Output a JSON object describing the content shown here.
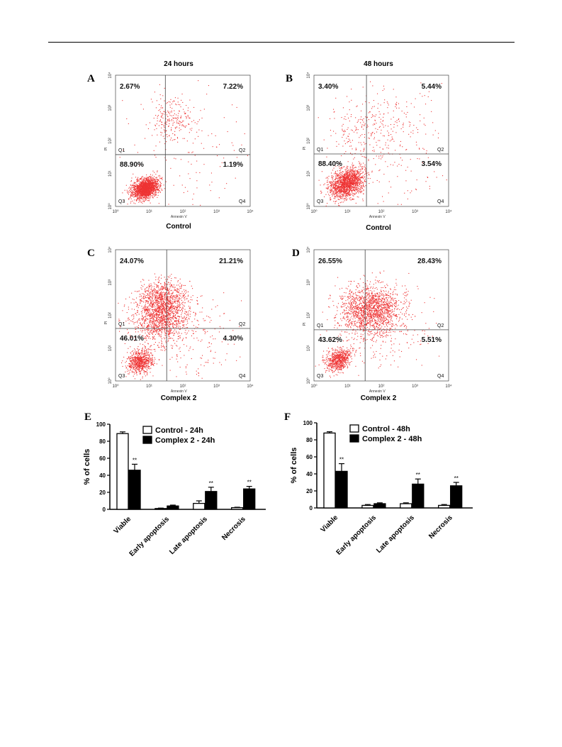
{
  "headers": {
    "left": "24 hours",
    "right": "48 hours"
  },
  "flow_panels": [
    {
      "letter": "A",
      "caption": "Control",
      "q1_pct": "2.67%",
      "q2_pct": "7.22%",
      "q3_pct": "88.90%",
      "q4_pct": "1.19%"
    },
    {
      "letter": "B",
      "caption": "Control",
      "q1_pct": "3.40%",
      "q2_pct": "5.44%",
      "q3_pct": "88.40%",
      "q4_pct": "3.54%"
    },
    {
      "letter": "C",
      "caption": "Complex 2",
      "q1_pct": "24.07%",
      "q2_pct": "21.21%",
      "q3_pct": "46.01%",
      "q4_pct": "4.30%"
    },
    {
      "letter": "D",
      "caption": "Complex 2",
      "q1_pct": "26.55%",
      "q2_pct": "28.43%",
      "q3_pct": "43.62%",
      "q4_pct": "5.51%"
    }
  ],
  "flow_common": {
    "quadrant_labels": [
      "Q1",
      "Q2",
      "Q3",
      "Q4"
    ],
    "x_axis_label": "Annexin V",
    "y_axis_label": "PI",
    "tick_labels": [
      "10⁰",
      "10¹",
      "10²",
      "10³",
      "10⁴"
    ],
    "dot_color": "#ee3333"
  },
  "chart_data": [
    {
      "panel": "E",
      "type": "bar",
      "categories": [
        "Viable",
        "Early apoptosis",
        "Late apoptosis",
        "Necrosis"
      ],
      "series": [
        {
          "name": "Control - 24h",
          "values": [
            89,
            1,
            7,
            2
          ],
          "errors": [
            2,
            0.5,
            3,
            0.5
          ],
          "fill": "#ffffff"
        },
        {
          "name": "Complex 2 - 24h",
          "values": [
            46,
            4,
            21,
            24
          ],
          "errors": [
            7,
            1,
            5,
            3
          ],
          "fill": "#000000"
        }
      ],
      "significance": [
        "**",
        "",
        "**",
        "**"
      ],
      "ylabel": "% of cells",
      "ylim": [
        0,
        100
      ],
      "yticks": [
        0,
        20,
        40,
        60,
        80,
        100
      ],
      "legend_position": "top-right"
    },
    {
      "panel": "F",
      "type": "bar",
      "categories": [
        "Viable",
        "Early apoptosis",
        "Late apoptosis",
        "Necrosis"
      ],
      "series": [
        {
          "name": "Control - 48h",
          "values": [
            88,
            3,
            5,
            3
          ],
          "errors": [
            1.5,
            1,
            1,
            1
          ],
          "fill": "#ffffff"
        },
        {
          "name": "Complex 2 - 48h",
          "values": [
            43,
            5,
            28,
            26
          ],
          "errors": [
            9,
            1,
            6,
            4
          ],
          "fill": "#000000"
        }
      ],
      "significance": [
        "**",
        "",
        "**",
        "**"
      ],
      "ylabel": "% of cells",
      "ylim": [
        0,
        100
      ],
      "yticks": [
        0,
        20,
        40,
        60,
        80,
        100
      ],
      "legend_position": "top-right"
    }
  ]
}
